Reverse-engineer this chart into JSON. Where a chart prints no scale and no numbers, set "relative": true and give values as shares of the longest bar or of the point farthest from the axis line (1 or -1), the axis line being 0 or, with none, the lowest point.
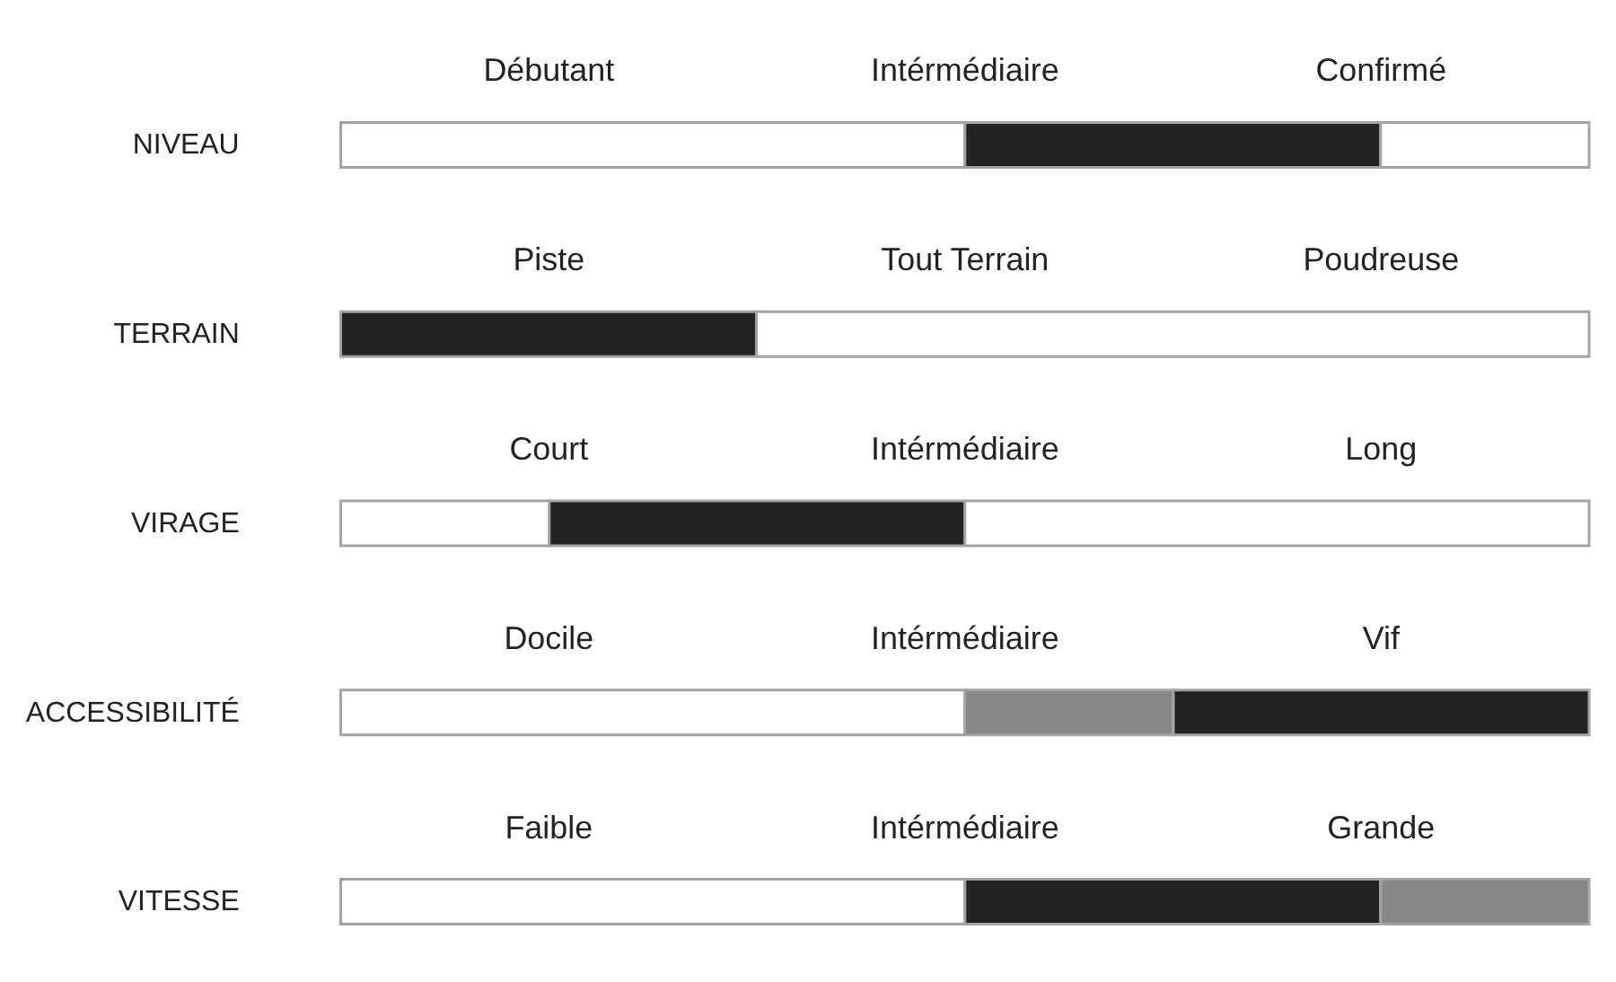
{
  "chart_data": {
    "type": "bar",
    "orientation": "horizontal",
    "stacked": true,
    "relative": true,
    "categories": [
      "NIVEAU",
      "TERRAIN",
      "VIRAGE",
      "ACCESSIBILITÉ",
      "VITESSE"
    ],
    "series": [
      {
        "color": "#ffffff",
        "values": [
          0.5,
          null,
          0.167,
          0.5,
          0.5
        ]
      },
      {
        "color": "#878787",
        "values": [
          null,
          null,
          null,
          0.167,
          null
        ]
      },
      {
        "color": "#222222",
        "values": [
          0.333,
          0.333,
          0.333,
          0.333,
          0.333
        ]
      },
      {
        "color": "#878787",
        "values": [
          null,
          null,
          null,
          null,
          0.167
        ]
      },
      {
        "color": "#ffffff",
        "values": [
          0.167,
          0.667,
          0.5,
          null,
          null
        ]
      }
    ],
    "annotations": [
      "Débutant",
      "Intérmédiaire",
      "Confirmé",
      "Piste",
      "Tout Terrain",
      "Poudreuse",
      "Court",
      "Intérmédiaire",
      "Long",
      "Docile",
      "Intérmédiaire",
      "Vif",
      "Faible",
      "Intérmédiaire",
      "Grande"
    ]
  }
}
